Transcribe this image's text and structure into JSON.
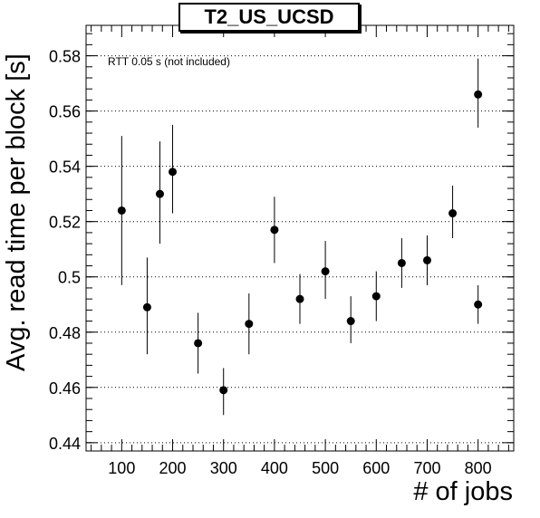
{
  "chart_data": {
    "type": "scatter",
    "title": "T2_US_UCSD",
    "xlabel": "# of jobs",
    "ylabel": "Avg. read time per block [s]",
    "annotation": "RTT 0.05 s (not included)",
    "xlim": [
      30,
      870
    ],
    "ylim": [
      0.437,
      0.591
    ],
    "xticks": [
      100,
      200,
      300,
      400,
      500,
      600,
      700,
      800
    ],
    "xtick_labels": [
      "100",
      "200",
      "300",
      "400",
      "500",
      "600",
      "700",
      "800"
    ],
    "yticks": [
      0.44,
      0.46,
      0.48,
      0.5,
      0.52,
      0.54,
      0.56,
      0.58
    ],
    "ytick_labels": [
      "0.44",
      "0.46",
      "0.48",
      "0.5",
      "0.52",
      "0.54",
      "0.56",
      "0.58"
    ],
    "grid": "horizontal dotted",
    "series": [
      {
        "marker": "filled-circle",
        "color": "#000000",
        "points": [
          {
            "x": 100,
            "y": 0.524,
            "err_low": 0.497,
            "err_high": 0.551
          },
          {
            "x": 150,
            "y": 0.489,
            "err_low": 0.472,
            "err_high": 0.507
          },
          {
            "x": 175,
            "y": 0.53,
            "err_low": 0.512,
            "err_high": 0.549
          },
          {
            "x": 200,
            "y": 0.538,
            "err_low": 0.523,
            "err_high": 0.555
          },
          {
            "x": 250,
            "y": 0.476,
            "err_low": 0.465,
            "err_high": 0.487
          },
          {
            "x": 300,
            "y": 0.459,
            "err_low": 0.45,
            "err_high": 0.467
          },
          {
            "x": 350,
            "y": 0.483,
            "err_low": 0.472,
            "err_high": 0.494
          },
          {
            "x": 400,
            "y": 0.517,
            "err_low": 0.505,
            "err_high": 0.529
          },
          {
            "x": 450,
            "y": 0.492,
            "err_low": 0.483,
            "err_high": 0.501
          },
          {
            "x": 500,
            "y": 0.502,
            "err_low": 0.492,
            "err_high": 0.513
          },
          {
            "x": 550,
            "y": 0.484,
            "err_low": 0.476,
            "err_high": 0.493
          },
          {
            "x": 600,
            "y": 0.493,
            "err_low": 0.484,
            "err_high": 0.502
          },
          {
            "x": 650,
            "y": 0.505,
            "err_low": 0.496,
            "err_high": 0.514
          },
          {
            "x": 700,
            "y": 0.506,
            "err_low": 0.497,
            "err_high": 0.515
          },
          {
            "x": 750,
            "y": 0.523,
            "err_low": 0.514,
            "err_high": 0.533
          },
          {
            "x": 800,
            "y": 0.49,
            "err_low": 0.483,
            "err_high": 0.497
          },
          {
            "x": 800,
            "y": 0.566,
            "err_low": 0.554,
            "err_high": 0.579
          }
        ]
      }
    ]
  }
}
